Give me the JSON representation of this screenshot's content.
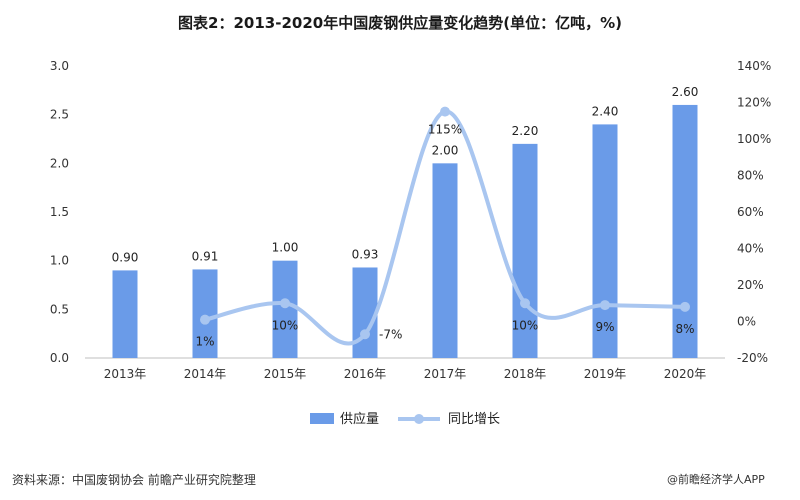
{
  "chart_data": {
    "type": "bar",
    "title": "图表2：2013-2020年中国废钢供应量变化趋势(单位：亿吨，%)",
    "categories": [
      "2013年",
      "2014年",
      "2015年",
      "2016年",
      "2017年",
      "2018年",
      "2019年",
      "2020年"
    ],
    "series": [
      {
        "name": "供应量",
        "type": "bar",
        "axis": "left",
        "color": "#6a9be8",
        "values": [
          0.9,
          0.91,
          1.0,
          0.93,
          2.0,
          2.2,
          2.4,
          2.6
        ],
        "labels": [
          "0.90",
          "0.91",
          "1.00",
          "0.93",
          "2.00",
          "2.20",
          "2.40",
          "2.60"
        ]
      },
      {
        "name": "同比增长",
        "type": "line",
        "smooth": true,
        "axis": "right",
        "color": "#a9c6f0",
        "values": [
          null,
          1,
          10,
          -7,
          115,
          10,
          9,
          8
        ],
        "labels": [
          "",
          "1%",
          "10%",
          "-7%",
          "115%",
          "10%",
          "9%",
          "8%"
        ]
      }
    ],
    "y_left": {
      "min": 0,
      "max": 3.0,
      "step": 0.5,
      "ticks": [
        "0.0",
        "0.5",
        "1.0",
        "1.5",
        "2.0",
        "2.5",
        "3.0"
      ]
    },
    "y_right": {
      "min": -20,
      "max": 140,
      "step": 20,
      "ticks": [
        "-20%",
        "0%",
        "20%",
        "40%",
        "60%",
        "80%",
        "100%",
        "120%",
        "140%"
      ]
    },
    "grid": false,
    "legend_position": "bottom"
  },
  "footer": {
    "source": "资料来源：中国废钢协会 前瞻产业研究院整理",
    "credit": "@前瞻经济学人APP"
  }
}
